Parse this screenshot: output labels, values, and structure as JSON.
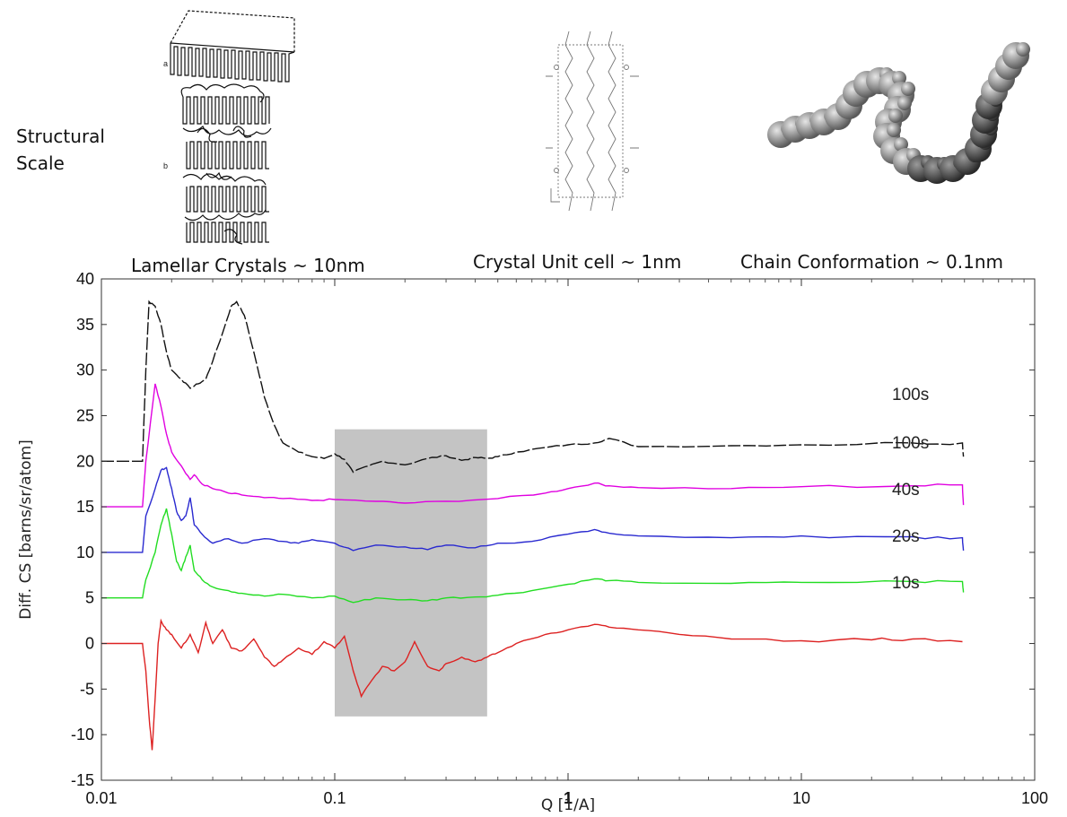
{
  "header": {
    "structural_scale": [
      "Structural",
      "Scale"
    ],
    "lamellar": "Lamellar Crystals ~ 10nm",
    "unit_cell": "Crystal Unit cell ~ 1nm",
    "chain": "Chain Conformation ~ 0.1nm",
    "fig_a": "a",
    "fig_b": "b"
  },
  "chart_data": {
    "type": "line",
    "xlabel": "Q [1/A]",
    "ylabel": "Diff. CS [barns/sr/atom]",
    "xscale": "log",
    "xlim": [
      0.01,
      100
    ],
    "ylim": [
      -15,
      40
    ],
    "x_ticks": [
      "0.01",
      "0.1",
      "1",
      "10",
      "100"
    ],
    "y_ticks": [
      "40",
      "35",
      "30",
      "25",
      "20",
      "15",
      "10",
      "5",
      "0",
      "-5",
      "-10",
      "-15"
    ],
    "highlight_region": {
      "x": [
        0.1,
        0.45
      ],
      "y": [
        -8,
        23.5
      ]
    },
    "series": [
      {
        "name": "100s",
        "color": "#111111",
        "dashed": true,
        "x": [
          0.01,
          0.015,
          0.0155,
          0.016,
          0.017,
          0.018,
          0.019,
          0.02,
          0.022,
          0.024,
          0.026,
          0.028,
          0.03,
          0.033,
          0.036,
          0.038,
          0.041,
          0.045,
          0.05,
          0.055,
          0.06,
          0.07,
          0.08,
          0.09,
          0.1,
          0.11,
          0.12,
          0.14,
          0.16,
          0.2,
          0.25,
          0.3,
          0.35,
          0.4,
          0.45,
          0.5,
          0.6,
          0.8,
          1.0,
          1.3,
          1.5,
          2.0,
          5.0,
          10,
          30,
          49,
          49.5
        ],
        "y": [
          20,
          20,
          30,
          37.5,
          37,
          35,
          32,
          30,
          29,
          28,
          28.5,
          29,
          31,
          34,
          37,
          37.5,
          36,
          32,
          27,
          24,
          22,
          21,
          20.5,
          20.3,
          20.8,
          20.2,
          18.8,
          19.5,
          20,
          19.6,
          20.3,
          20.6,
          20.1,
          20.4,
          20.3,
          20.5,
          21,
          21.5,
          21.8,
          22,
          22.5,
          21.6,
          21.7,
          21.8,
          22,
          22,
          20.5
        ]
      },
      {
        "name": "100s",
        "color": "#e000e0",
        "x": [
          0.01,
          0.015,
          0.0155,
          0.017,
          0.018,
          0.019,
          0.02,
          0.022,
          0.024,
          0.025,
          0.027,
          0.03,
          0.035,
          0.04,
          0.05,
          0.06,
          0.08,
          0.1,
          0.15,
          0.2,
          0.3,
          0.5,
          0.8,
          1.0,
          1.3,
          1.5,
          2.0,
          5.0,
          10,
          30,
          49,
          49.5
        ],
        "y": [
          15,
          15,
          20,
          28.5,
          26,
          23,
          21,
          19.5,
          18,
          18.5,
          17.5,
          17,
          16.5,
          16.3,
          16,
          15.9,
          15.7,
          15.8,
          15.6,
          15.4,
          15.6,
          15.9,
          16.5,
          17,
          17.6,
          17.3,
          17.1,
          17,
          17.2,
          17.3,
          17.4,
          15.2
        ]
      },
      {
        "name": "40s",
        "color": "#2a2ad0",
        "x": [
          0.01,
          0.015,
          0.0155,
          0.017,
          0.018,
          0.019,
          0.02,
          0.021,
          0.022,
          0.023,
          0.024,
          0.025,
          0.027,
          0.03,
          0.035,
          0.04,
          0.05,
          0.06,
          0.07,
          0.08,
          0.1,
          0.12,
          0.15,
          0.2,
          0.25,
          0.3,
          0.4,
          0.5,
          0.7,
          1.0,
          1.3,
          1.5,
          2.0,
          5.0,
          10,
          30,
          49,
          49.5
        ],
        "y": [
          10,
          10,
          14,
          17,
          19,
          19.3,
          17,
          14.5,
          13.5,
          14,
          16,
          13,
          12,
          11,
          11.5,
          11,
          11.5,
          11.2,
          11,
          11.4,
          11,
          10.2,
          10.8,
          10.6,
          10.3,
          10.8,
          10.5,
          11,
          11.2,
          12,
          12.5,
          12.1,
          11.8,
          11.6,
          11.8,
          11.7,
          11.6,
          10.2
        ]
      },
      {
        "name": "20s",
        "color": "#22dd22",
        "x": [
          0.01,
          0.015,
          0.0155,
          0.017,
          0.018,
          0.019,
          0.02,
          0.021,
          0.022,
          0.023,
          0.024,
          0.025,
          0.027,
          0.03,
          0.035,
          0.04,
          0.05,
          0.06,
          0.08,
          0.1,
          0.12,
          0.15,
          0.2,
          0.25,
          0.3,
          0.4,
          0.5,
          0.7,
          1.0,
          1.3,
          1.5,
          2.0,
          5.0,
          10,
          30,
          49,
          49.5
        ],
        "y": [
          5,
          5,
          7,
          10,
          13,
          14.8,
          12,
          9,
          8,
          9.5,
          10.8,
          8,
          7,
          6.2,
          5.8,
          5.5,
          5.2,
          5.4,
          5,
          5.2,
          4.5,
          5,
          4.8,
          4.7,
          5,
          5.1,
          5.3,
          5.8,
          6.5,
          7.1,
          6.9,
          6.7,
          6.6,
          6.7,
          6.8,
          6.8,
          5.6
        ]
      },
      {
        "name": "10s",
        "color": "#dd2222",
        "x": [
          0.01,
          0.015,
          0.0155,
          0.016,
          0.0165,
          0.017,
          0.0175,
          0.018,
          0.019,
          0.02,
          0.022,
          0.024,
          0.026,
          0.028,
          0.03,
          0.033,
          0.036,
          0.04,
          0.045,
          0.05,
          0.055,
          0.06,
          0.07,
          0.08,
          0.09,
          0.1,
          0.11,
          0.12,
          0.13,
          0.14,
          0.16,
          0.18,
          0.2,
          0.22,
          0.25,
          0.28,
          0.3,
          0.35,
          0.4,
          0.45,
          0.5,
          0.6,
          0.8,
          1.0,
          1.3,
          1.5,
          2.0,
          3.0,
          5.0,
          10,
          20,
          30,
          49
        ],
        "y": [
          0,
          0,
          -3,
          -8,
          -11.7,
          -6,
          0,
          2.5,
          1.5,
          1,
          -0.5,
          1,
          -1,
          2.3,
          0,
          1.5,
          -0.5,
          -0.8,
          0.5,
          -1.5,
          -2.5,
          -1.8,
          -0.5,
          -1.2,
          0.2,
          -0.5,
          0.8,
          -3,
          -5.8,
          -4.5,
          -2.5,
          -3,
          -2,
          0.2,
          -2.5,
          -3,
          -2.2,
          -1.5,
          -2,
          -1.5,
          -1,
          0,
          1,
          1.5,
          2.1,
          1.8,
          1.5,
          1,
          0.5,
          0.3,
          0.4,
          0.5,
          0.2
        ]
      }
    ]
  }
}
